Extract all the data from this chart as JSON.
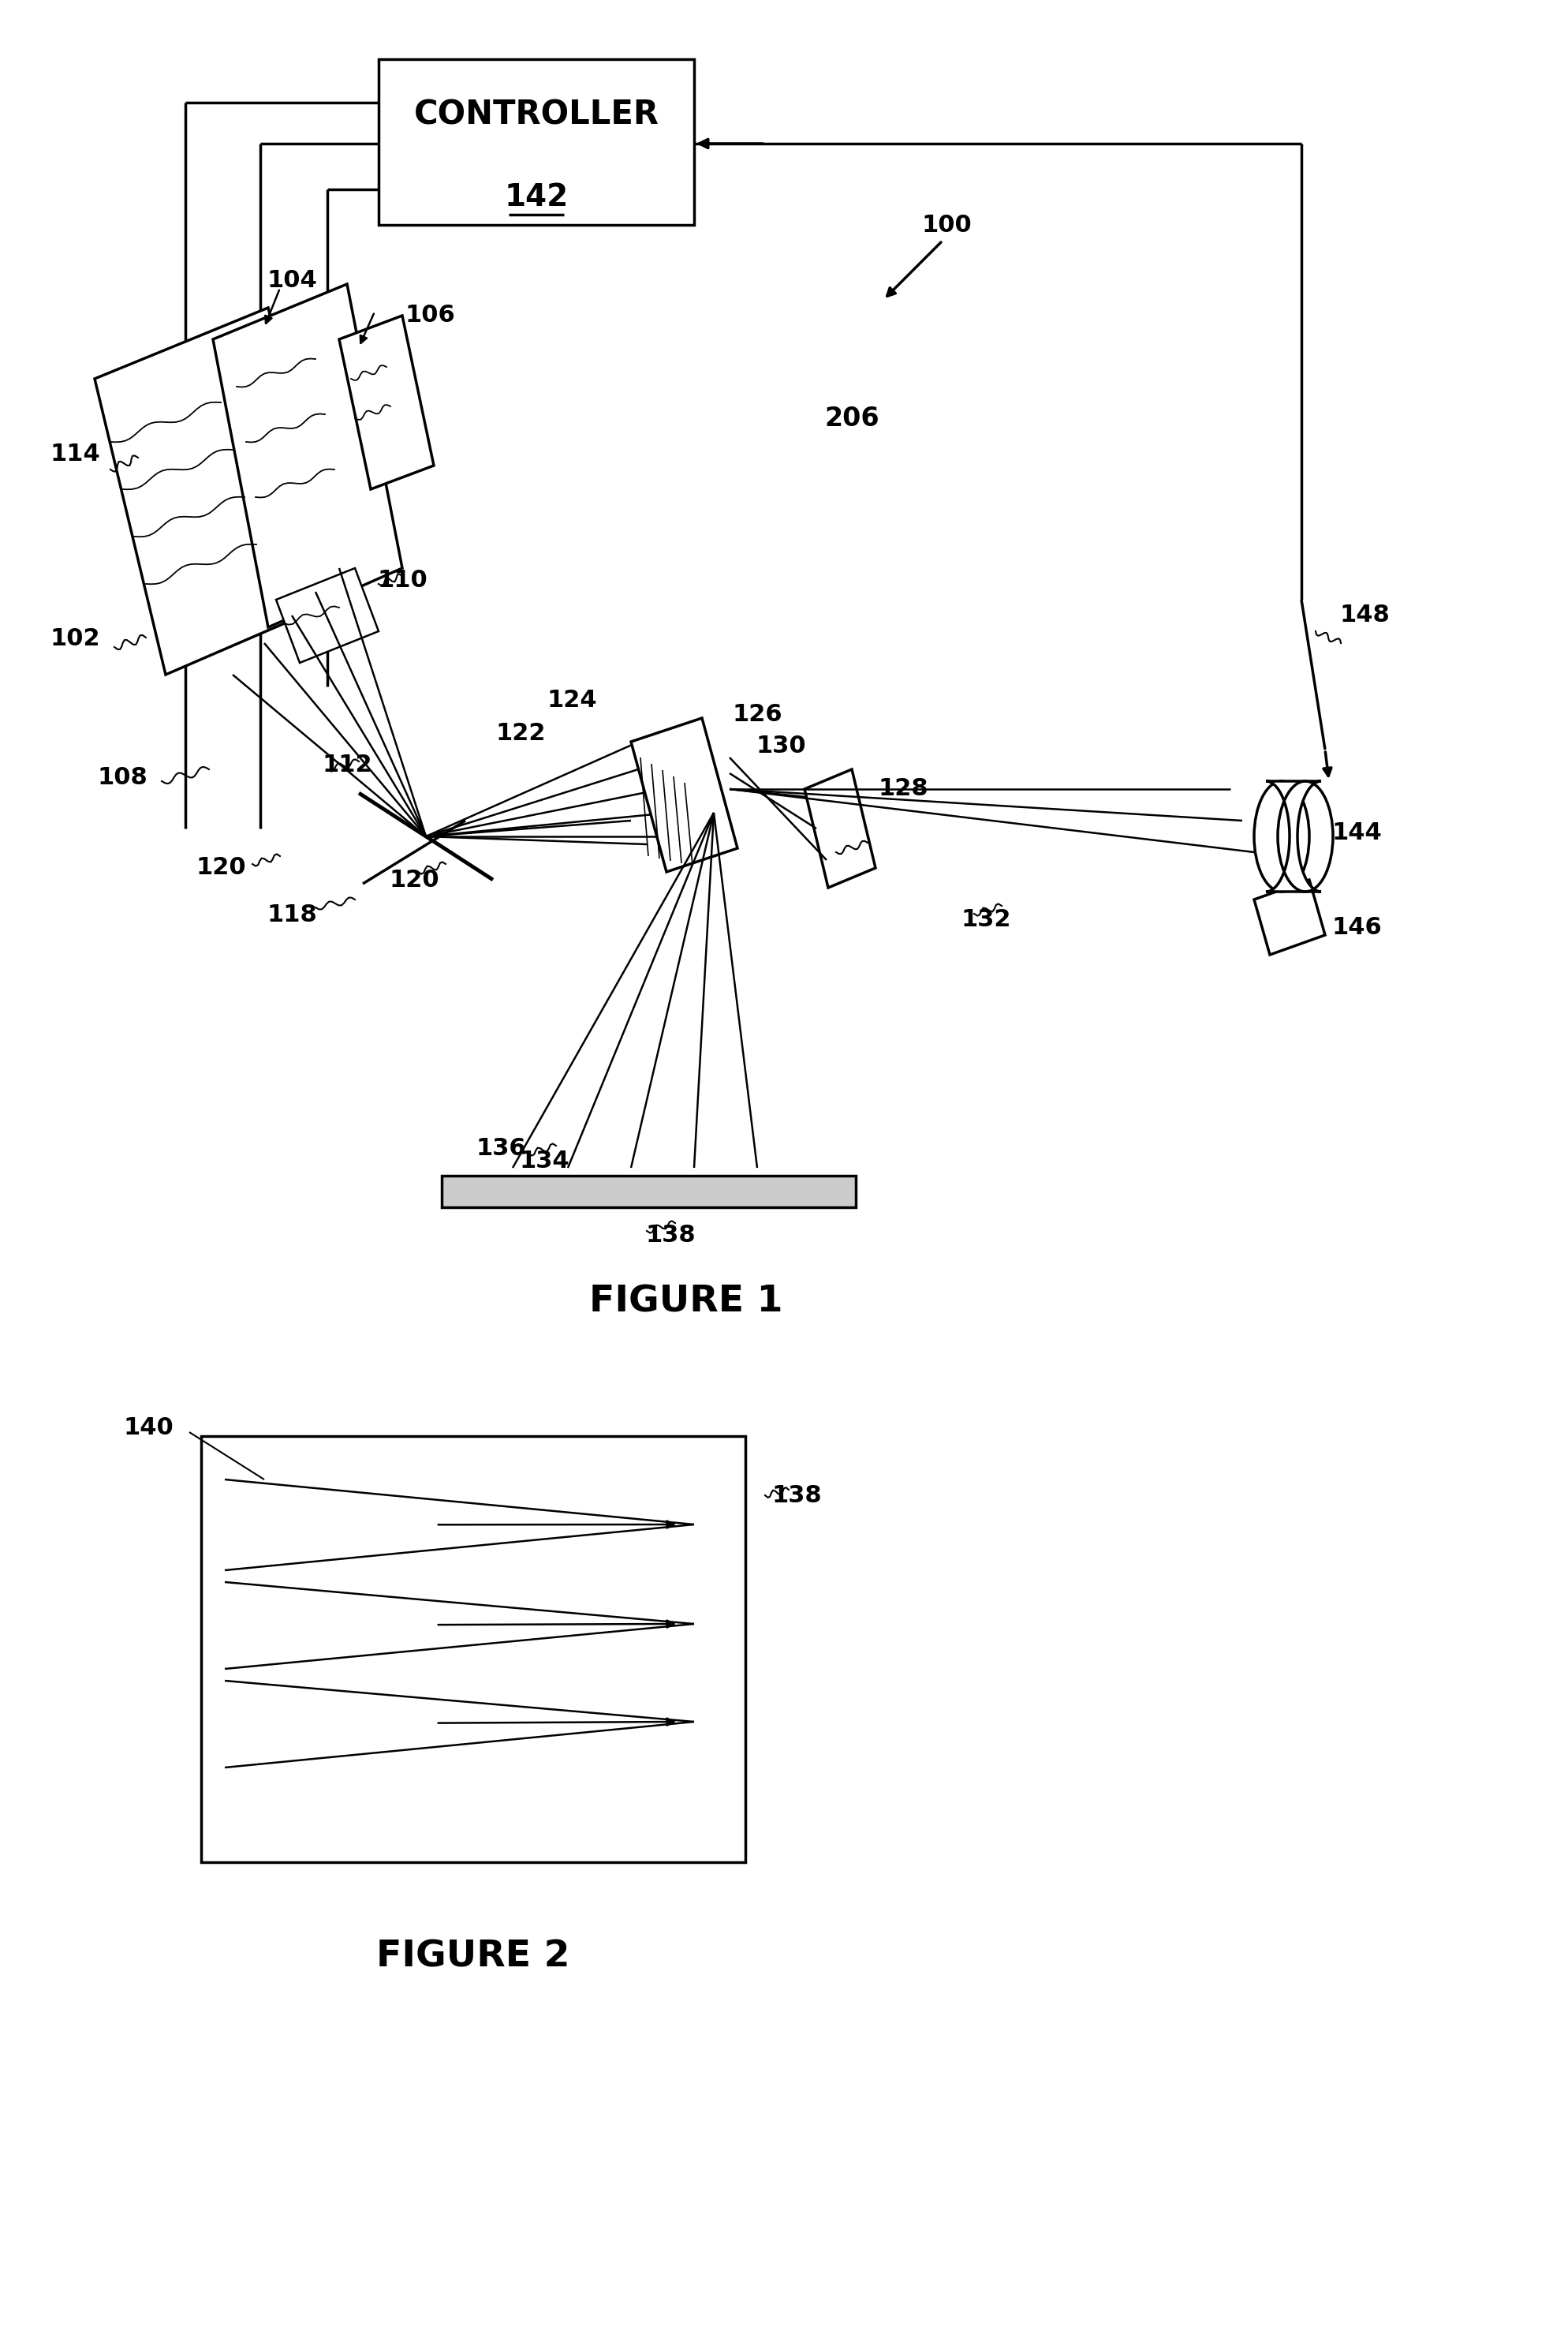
{
  "fig1_title": "FIGURE 1",
  "fig2_title": "FIGURE 2",
  "background_color": "#ffffff",
  "line_color": "#000000",
  "controller_label": "CONTROLLER",
  "controller_num": "142",
  "label_100": "100",
  "label_102": "102",
  "label_104": "104",
  "label_106": "106",
  "label_108": "108",
  "label_110": "110",
  "label_112": "112",
  "label_114": "114",
  "label_118": "118",
  "label_120a": "120",
  "label_120b": "120",
  "label_122": "122",
  "label_124": "124",
  "label_126": "126",
  "label_128": "128",
  "label_130": "130",
  "label_132": "132",
  "label_134": "134",
  "label_136": "136",
  "label_138": "138",
  "label_138b": "138",
  "label_140": "140",
  "label_144": "144",
  "label_146": "146",
  "label_148": "148",
  "label_206": "206"
}
